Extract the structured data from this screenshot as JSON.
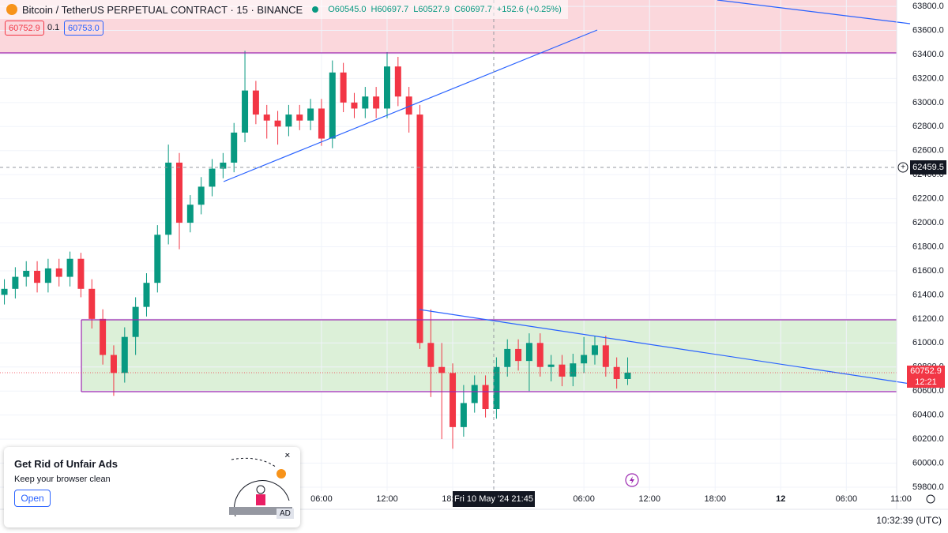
{
  "header": {
    "symbol": "Bitcoin / TetherUS PERPETUAL CONTRACT · 15 · BINANCE",
    "ohlc": [
      "O60545.0",
      "H60697.7",
      "L60527.9",
      "C60697.7",
      "+152.6 (+0.25%)"
    ],
    "sell": "60752.9",
    "spread": "0.1",
    "buy": "60753.0"
  },
  "chart_data": {
    "type": "candlestick",
    "x": [
      -35,
      -34,
      -33,
      -32,
      -31,
      -30,
      -29,
      -28,
      -27,
      -26,
      -25,
      -24,
      -23,
      -22,
      -21,
      -20,
      -19,
      -18,
      -17,
      -16,
      -15,
      -14,
      -13,
      -12,
      -11,
      -10,
      -9,
      -8,
      -7,
      -6,
      -5,
      -4,
      -3,
      -2,
      -1,
      0,
      1,
      2,
      3,
      4,
      5,
      6,
      7,
      8,
      9,
      10,
      11,
      12,
      13,
      14,
      15,
      16,
      17,
      18,
      19,
      20,
      21,
      22
    ],
    "open": [
      61400,
      61450,
      61550,
      61600,
      61500,
      61620,
      61550,
      61700,
      61450,
      61200,
      60900,
      60750,
      61050,
      61300,
      61500,
      61900,
      62500,
      62000,
      62150,
      62300,
      62450,
      62500,
      62750,
      63100,
      62900,
      62850,
      62800,
      62900,
      62850,
      62950,
      62700,
      63250,
      63000,
      62950,
      63050,
      62950,
      63300,
      63050,
      62900,
      61000,
      60800,
      60750,
      60300,
      60500,
      60650,
      60450,
      60800,
      60950,
      60850,
      61000,
      60800,
      60820,
      60720,
      60830,
      60900,
      60980,
      60800,
      60700
    ],
    "high": [
      61530,
      61630,
      61680,
      61680,
      61700,
      61700,
      61760,
      61750,
      61530,
      61280,
      60980,
      61130,
      61380,
      61580,
      61980,
      62650,
      62580,
      62230,
      62380,
      62530,
      62580,
      62830,
      63430,
      63180,
      62980,
      62930,
      62980,
      62980,
      63030,
      63030,
      63350,
      63330,
      63080,
      63130,
      63130,
      63420,
      63380,
      63130,
      62980,
      61280,
      61000,
      60830,
      60650,
      60730,
      60730,
      60880,
      61030,
      61030,
      61080,
      61080,
      60900,
      60900,
      60910,
      61050,
      61060,
      61060,
      60880,
      60880
    ],
    "low": [
      61320,
      61370,
      61470,
      61420,
      61420,
      61470,
      61470,
      61380,
      61120,
      60820,
      60560,
      60670,
      60900,
      61220,
      61420,
      61820,
      61780,
      61920,
      62070,
      62220,
      62370,
      62420,
      62670,
      62820,
      62700,
      62650,
      62720,
      62770,
      62770,
      62640,
      62620,
      62920,
      62870,
      62870,
      62870,
      62870,
      62970,
      62750,
      60950,
      60550,
      60200,
      60120,
      60220,
      60420,
      60380,
      60370,
      60720,
      60770,
      60600,
      60720,
      60680,
      60640,
      60640,
      60750,
      60820,
      60720,
      60620,
      60650
    ],
    "close": [
      61450,
      61550,
      61600,
      61500,
      61620,
      61550,
      61700,
      61450,
      61200,
      60900,
      60750,
      61050,
      61300,
      61500,
      61900,
      62500,
      62000,
      62150,
      62300,
      62450,
      62500,
      62750,
      63100,
      62900,
      62850,
      62800,
      62900,
      62850,
      62950,
      62700,
      63250,
      63000,
      62950,
      63050,
      62950,
      63300,
      63050,
      62900,
      61000,
      60800,
      60750,
      60300,
      60500,
      60650,
      60450,
      60800,
      60950,
      60850,
      61000,
      60800,
      60820,
      60720,
      60830,
      60900,
      60980,
      60800,
      60700,
      60753
    ],
    "up_color": "#089981",
    "down_color": "#f23645",
    "xlim": [
      -35.4,
      46.6
    ],
    "xticks": [
      {
        "value": -6,
        "label": "06:00"
      },
      {
        "value": 0,
        "label": "12:00"
      },
      {
        "value": 6,
        "label": "18:00"
      },
      {
        "value": 18,
        "label": "06:00"
      },
      {
        "value": 24,
        "label": "12:00"
      },
      {
        "value": 30,
        "label": "18:00"
      },
      {
        "value": 36,
        "label": "12"
      },
      {
        "value": 42,
        "label": "06:00"
      },
      {
        "value": 47,
        "label": "11:00"
      }
    ],
    "ylim": [
      59767,
      63853
    ],
    "yticks": [
      {
        "value": 59800,
        "label": "59800.0"
      },
      {
        "value": 60000,
        "label": "60000.0"
      },
      {
        "value": 60200,
        "label": "60200.0"
      },
      {
        "value": 60400,
        "label": "60400.0"
      },
      {
        "value": 60600,
        "label": "60600.0"
      },
      {
        "value": 60800,
        "label": "60800.0"
      },
      {
        "value": 61000,
        "label": "61000.0"
      },
      {
        "value": 61200,
        "label": "61200.0"
      },
      {
        "value": 61400,
        "label": "61400.0"
      },
      {
        "value": 61600,
        "label": "61600.0"
      },
      {
        "value": 61800,
        "label": "61800.0"
      },
      {
        "value": 62000,
        "label": "62000.0"
      },
      {
        "value": 62200,
        "label": "62200.0"
      },
      {
        "value": 62400,
        "label": "62400.0"
      },
      {
        "value": 62600,
        "label": "62600.0"
      },
      {
        "value": 62800,
        "label": "62800.0"
      },
      {
        "value": 63000,
        "label": "63000.0"
      },
      {
        "value": 63200,
        "label": "63200.0"
      },
      {
        "value": 63400,
        "label": "63400.0"
      },
      {
        "value": 63600,
        "label": "63600.0"
      },
      {
        "value": 63800,
        "label": "63800.0"
      }
    ],
    "grid": true,
    "crosshair_time": "Fri 10 May '24  21:45",
    "crosshair_price": "62459.5",
    "last_price": "60752.9",
    "countdown": "12:21"
  },
  "status": {
    "clock": "10:32:39 (UTC)"
  },
  "ad": {
    "title": "Get Rid of Unfair Ads",
    "text": "Keep your browser clean",
    "button": "Open",
    "badge": "AD"
  }
}
